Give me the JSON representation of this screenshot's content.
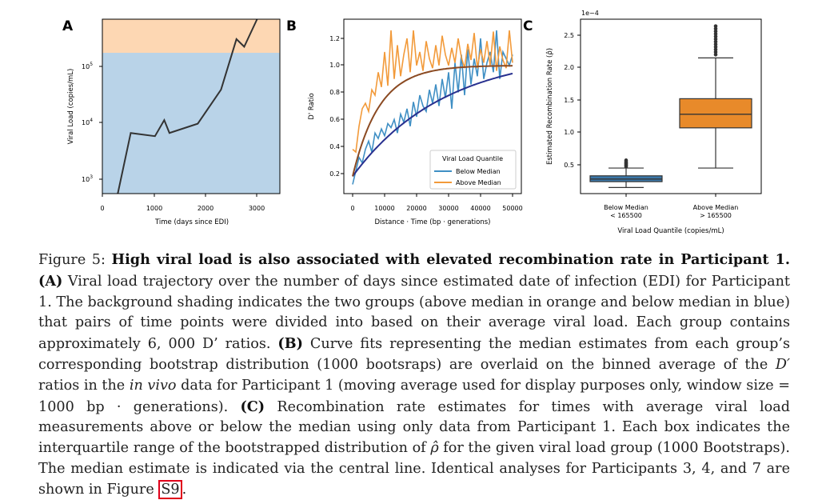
{
  "panels": {
    "a": {
      "letter": "A",
      "ylabel": "Viral Load (copies/mL)",
      "xlabel": "Time (days since EDI)",
      "xticks": [
        "0",
        "1000",
        "2000",
        "3000"
      ],
      "yticks": [
        "10",
        "10",
        "10"
      ],
      "yexps": [
        "5",
        "4",
        "3"
      ],
      "colors": {
        "above": "#fdd7b3",
        "below": "#b9d3e8",
        "line": "#333333"
      },
      "series": {
        "x": [
          300,
          550,
          1020,
          1200,
          1300,
          1850,
          2300,
          2600,
          2750,
          3000
        ],
        "y": [
          500,
          6500,
          5700,
          11000,
          6500,
          9500,
          38000,
          300000,
          220000,
          700000
        ]
      },
      "median_viral_load": 165500
    },
    "b": {
      "letter": "B",
      "ylabel": "D' Ratio",
      "xlabel": "Distance · Time (bp · generations)",
      "xticks": [
        "0",
        "10000",
        "20000",
        "30000",
        "40000",
        "50000"
      ],
      "yticks": [
        "0.2",
        "0.4",
        "0.6",
        "0.8",
        "1.0",
        "1.2"
      ],
      "legend": {
        "title": "Viral Load Quantile",
        "items": [
          {
            "label": "Below Median",
            "color": "#3f8fc4"
          },
          {
            "label": "Above Median",
            "color": "#f29a3a"
          }
        ]
      },
      "fit_colors": {
        "below": "#28308f",
        "above": "#8b4a22"
      },
      "below_raw": [
        0.12,
        0.22,
        0.32,
        0.28,
        0.38,
        0.44,
        0.36,
        0.5,
        0.46,
        0.53,
        0.48,
        0.57,
        0.54,
        0.6,
        0.5,
        0.64,
        0.58,
        0.68,
        0.55,
        0.73,
        0.62,
        0.78,
        0.7,
        0.66,
        0.82,
        0.72,
        0.86,
        0.7,
        0.9,
        0.76,
        0.95,
        0.68,
        1.02,
        0.8,
        1.08,
        0.78,
        1.12,
        0.86,
        1.05,
        0.92,
        1.2,
        0.9,
        1.02,
        1.1,
        0.95,
        1.26,
        0.9,
        1.1,
        1.05,
        1.0,
        1.08
      ],
      "above_raw": [
        0.38,
        0.36,
        0.55,
        0.68,
        0.72,
        0.66,
        0.82,
        0.78,
        0.95,
        0.84,
        1.1,
        0.85,
        1.26,
        0.9,
        1.15,
        0.92,
        1.08,
        1.2,
        0.95,
        1.26,
        1.0,
        1.1,
        0.96,
        1.18,
        1.05,
        0.98,
        1.15,
        1.0,
        1.22,
        1.08,
        1.0,
        1.13,
        1.02,
        1.2,
        1.06,
        0.98,
        1.16,
        1.04,
        1.24,
        0.98,
        1.12,
        1.02,
        1.18,
        1.0,
        1.25,
        0.96,
        1.14,
        1.04,
        0.98,
        1.26,
        1.02
      ]
    },
    "c": {
      "letter": "C",
      "ylabel": "Estimated Recombination Rate (ρ̂)",
      "xlabel": "Viral Load Quantile (copies/mL)",
      "offset_label": "1e−4",
      "yticks": [
        "0.5",
        "1.0",
        "1.5",
        "2.0",
        "2.5"
      ],
      "categories": [
        {
          "line1": "Below Median",
          "line2": "< 165500",
          "color": "#3b77a8"
        },
        {
          "line1": "Above Median",
          "line2": "> 165500",
          "color": "#e88a2a"
        }
      ],
      "boxes": [
        {
          "whislo": 0.15,
          "q1": 0.24,
          "med": 0.28,
          "q3": 0.33,
          "whishi": 0.45,
          "fliers": [
            0.47,
            0.49,
            0.5,
            0.52,
            0.53,
            0.55,
            0.57
          ]
        },
        {
          "whislo": 0.45,
          "q1": 1.07,
          "med": 1.28,
          "q3": 1.52,
          "whishi": 2.15,
          "fliers": [
            2.2,
            2.24,
            2.28,
            2.32,
            2.36,
            2.4,
            2.44,
            2.48,
            2.52,
            2.56,
            2.6,
            2.64
          ]
        }
      ]
    }
  },
  "caption": {
    "p1": "Figure 5: ",
    "b1": "High viral load is also associated with elevated recombination rate in Participant 1.",
    "p2": " ",
    "b2": "(A)",
    "p3": " Viral load trajectory over the number of days since estimated date of infection (EDI) for Participant 1. The background shading indicates the two groups (above median in orange and below median in blue) that pairs of time points were divided into based on their average viral load. Each group contains approximately 6, 000 D’ ratios. ",
    "b3": "(B)",
    "p4": " Curve fits representing the median estimates from each group’s corresponding bootstrap distribution (1000 bootsraps) are overlaid on the binned average of the ",
    "i1": "D′",
    "p5": " ratios in the ",
    "i2": "in vivo",
    "p6": " data for Participant 1 (moving average used for display purposes only, window size = 1000 bp · generations). ",
    "b4": "(C)",
    "p7": " Recombination rate estimates for times with average viral load measurements above or below the median using only data from Participant 1. Each box indicates the interquartile range of the bootstrapped distribution of ",
    "i3": "ρ̂",
    "p8": " for the given viral load group (1000 Bootstraps). The median estimate is indicated via the central line. Identical analyses for Participants 3, 4, and 7 are shown in Figure ",
    "ref": "S9",
    "p9": "."
  }
}
